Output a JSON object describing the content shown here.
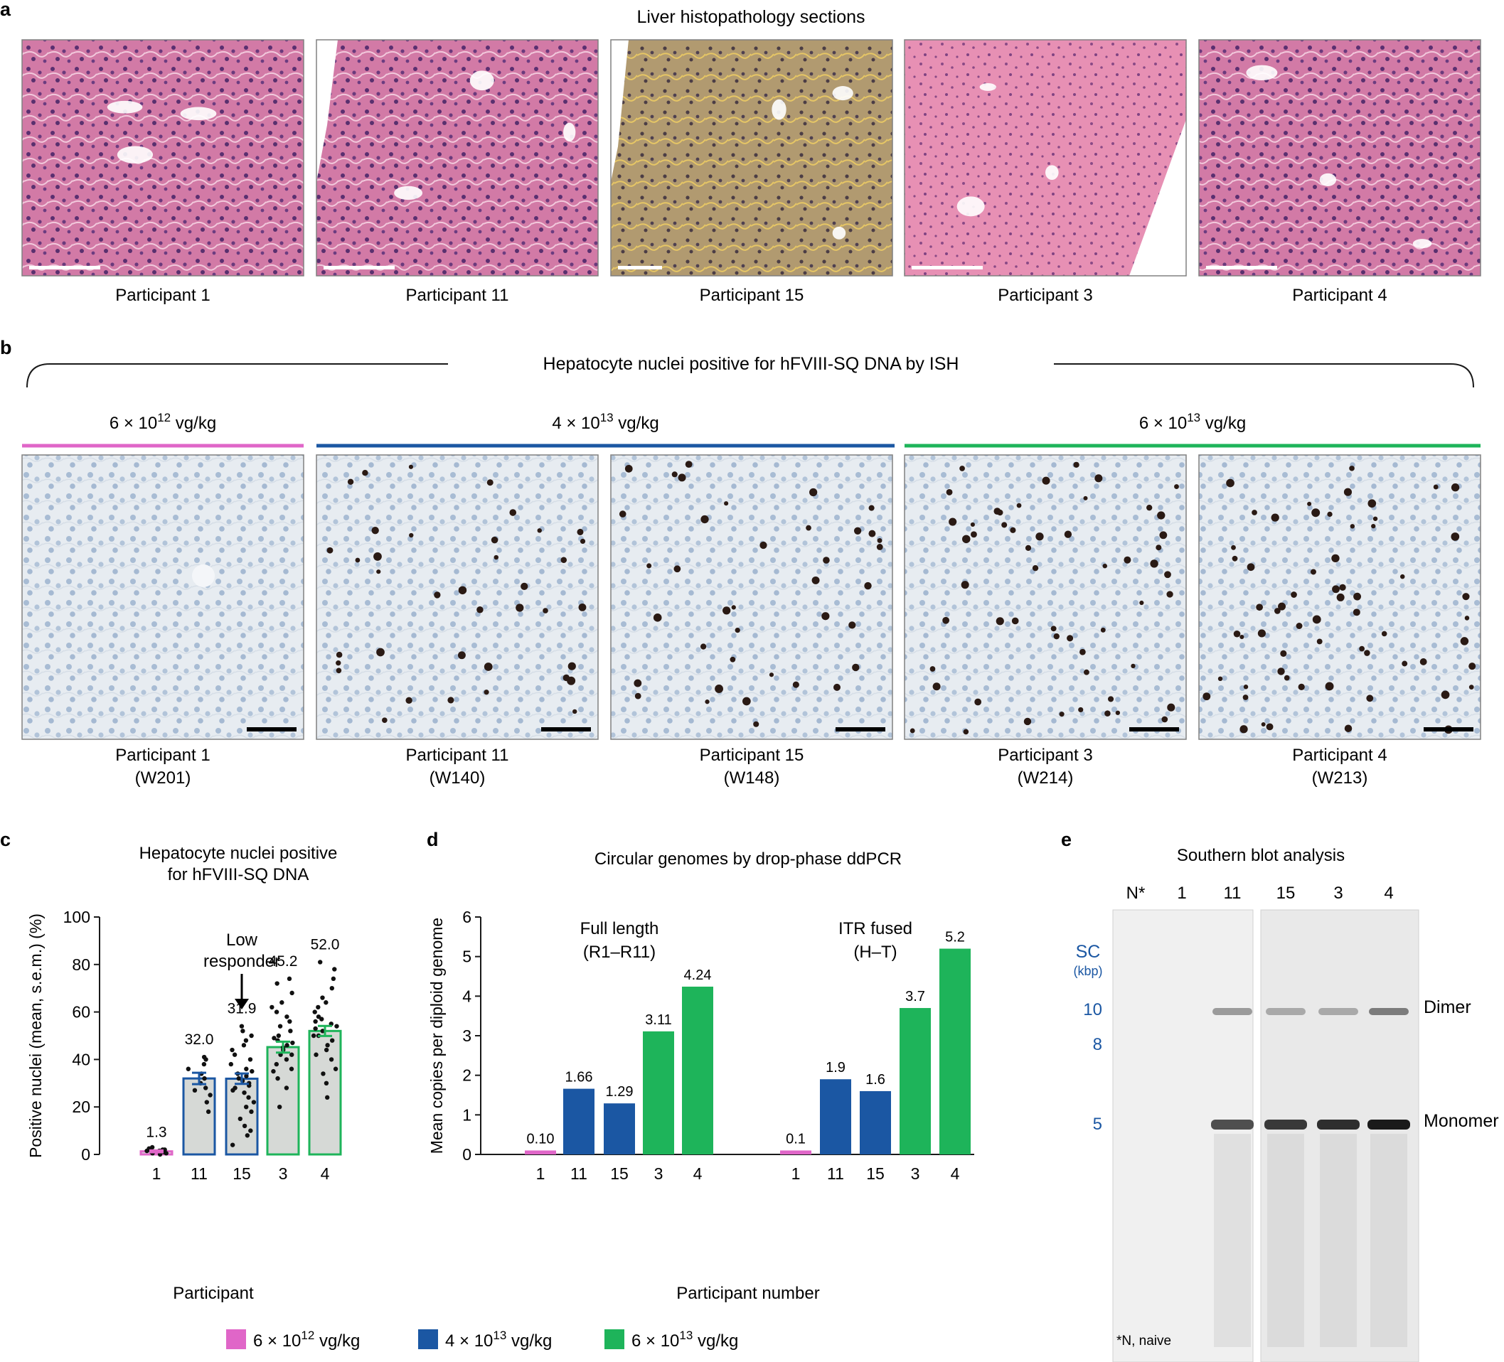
{
  "panel_a": {
    "letter": "a",
    "title": "Liver histopathology sections",
    "images": [
      {
        "label": "Participant 1",
        "tone": "he"
      },
      {
        "label": "Participant 11",
        "tone": "he"
      },
      {
        "label": "Participant 15",
        "tone": "tan"
      },
      {
        "label": "Participant 3",
        "tone": "he_light"
      },
      {
        "label": "Participant 4",
        "tone": "he"
      }
    ]
  },
  "panel_b": {
    "letter": "b",
    "title": "Hepatocyte nuclei positive for hFVIII-SQ DNA by ISH",
    "dose_groups": [
      {
        "prefix": "6 × 10",
        "exp": "12",
        "suffix": " vg/kg",
        "color": "#e066c8"
      },
      {
        "prefix": "4 × 10",
        "exp": "13",
        "suffix": " vg/kg",
        "color": "#1b57a3"
      },
      {
        "prefix": "6 × 10",
        "exp": "13",
        "suffix": " vg/kg",
        "color": "#1eb45a"
      }
    ],
    "images": [
      {
        "line1": "Participant 1",
        "line2": "(W201)",
        "density": 0
      },
      {
        "line1": "Participant 11",
        "line2": "(W140)",
        "density": 0.32
      },
      {
        "line1": "Participant 15",
        "line2": "(W148)",
        "density": 0.319
      },
      {
        "line1": "Participant 3",
        "line2": "(W214)",
        "density": 0.452
      },
      {
        "line1": "Participant 4",
        "line2": "(W213)",
        "density": 0.52
      }
    ]
  },
  "panel_c": {
    "letter": "c",
    "title_line1": "Hepatocyte nuclei positive",
    "title_line2": "for hFVIII-SQ DNA",
    "annotation_line1": "Low",
    "annotation_line2": "responder",
    "chart_data": {
      "type": "bar",
      "categories": [
        "1",
        "11",
        "15",
        "3",
        "4"
      ],
      "values": [
        1.3,
        32.0,
        31.9,
        45.2,
        52.0
      ],
      "value_labels": [
        "1.3",
        "32.0",
        "31.9",
        "45.2",
        "52.0"
      ],
      "sem": [
        0.4,
        2.4,
        2.2,
        2.3,
        2.1
      ],
      "bar_colors": [
        "#e066c8",
        "#1b57a3",
        "#1b57a3",
        "#1eb45a",
        "#1eb45a"
      ],
      "bar_fill": "#d6d9d6",
      "points": [
        [
          0,
          0.5,
          1,
          1.5,
          2,
          2,
          2.5,
          3,
          1,
          0.5,
          1.5,
          2
        ],
        [
          18,
          22,
          25,
          28,
          30,
          32,
          34,
          36,
          38,
          40,
          41,
          27
        ],
        [
          4,
          8,
          12,
          15,
          18,
          20,
          22,
          24,
          26,
          28,
          29,
          30,
          31,
          32,
          33,
          34,
          35,
          36,
          38,
          40,
          42,
          44,
          46,
          48,
          50,
          52,
          54,
          10,
          27
        ],
        [
          20,
          28,
          32,
          35,
          38,
          40,
          42,
          44,
          45,
          46,
          47,
          48,
          50,
          52,
          54,
          56,
          58,
          60,
          64,
          68,
          72,
          74,
          42,
          36,
          49,
          62
        ],
        [
          24,
          30,
          36,
          40,
          44,
          46,
          48,
          50,
          52,
          53,
          54,
          55,
          56,
          58,
          60,
          62,
          66,
          70,
          74,
          78,
          81,
          34,
          42,
          50,
          57,
          64
        ]
      ],
      "xlabel": "Participant",
      "ylabel": "Positive nuclei (mean, s.e.m.) (%)",
      "ylim": [
        0,
        100
      ],
      "yticks": [
        0,
        20,
        40,
        60,
        80,
        100
      ]
    }
  },
  "panel_d": {
    "letter": "d",
    "title": "Circular genomes by drop-phase ddPCR",
    "chart_data": {
      "type": "bar",
      "ylabel": "Mean copies per diploid genome",
      "xlabel": "Participant number",
      "ylim": [
        0,
        6
      ],
      "yticks": [
        0,
        1,
        2,
        3,
        4,
        5,
        6
      ],
      "groups": [
        {
          "name_line1": "Full length",
          "name_line2": "(R1–R11)",
          "categories": [
            "1",
            "11",
            "15",
            "3",
            "4"
          ],
          "values": [
            0.1,
            1.66,
            1.29,
            3.11,
            4.24
          ],
          "value_labels": [
            "0.10",
            "1.66",
            "1.29",
            "3.11",
            "4.24"
          ]
        },
        {
          "name_line1": "ITR fused",
          "name_line2": "(H–T)",
          "categories": [
            "1",
            "11",
            "15",
            "3",
            "4"
          ],
          "values": [
            0.1,
            1.9,
            1.6,
            3.7,
            5.2
          ],
          "value_labels": [
            "0.1",
            "1.9",
            "1.6",
            "3.7",
            "5.2"
          ]
        }
      ],
      "bar_colors": [
        "#e066c8",
        "#1b57a3",
        "#1b57a3",
        "#1eb45a",
        "#1eb45a"
      ]
    }
  },
  "panel_e": {
    "letter": "e",
    "title": "Southern blot analysis",
    "lanes": [
      "N*",
      "1",
      "11",
      "15",
      "3",
      "4"
    ],
    "marker_header": "SC",
    "marker_unit": "(kbp)",
    "markers": [
      "10",
      "8",
      "5"
    ],
    "band_labels": [
      "Dimer",
      "Monomer"
    ],
    "footnote": "*N, naive"
  },
  "legend": [
    {
      "prefix": "6 × 10",
      "exp": "12",
      "suffix": " vg/kg",
      "color": "#e066c8"
    },
    {
      "prefix": "4 × 10",
      "exp": "13",
      "suffix": " vg/kg",
      "color": "#1b57a3"
    },
    {
      "prefix": "6 × 10",
      "exp": "13",
      "suffix": " vg/kg",
      "color": "#1eb45a"
    }
  ]
}
